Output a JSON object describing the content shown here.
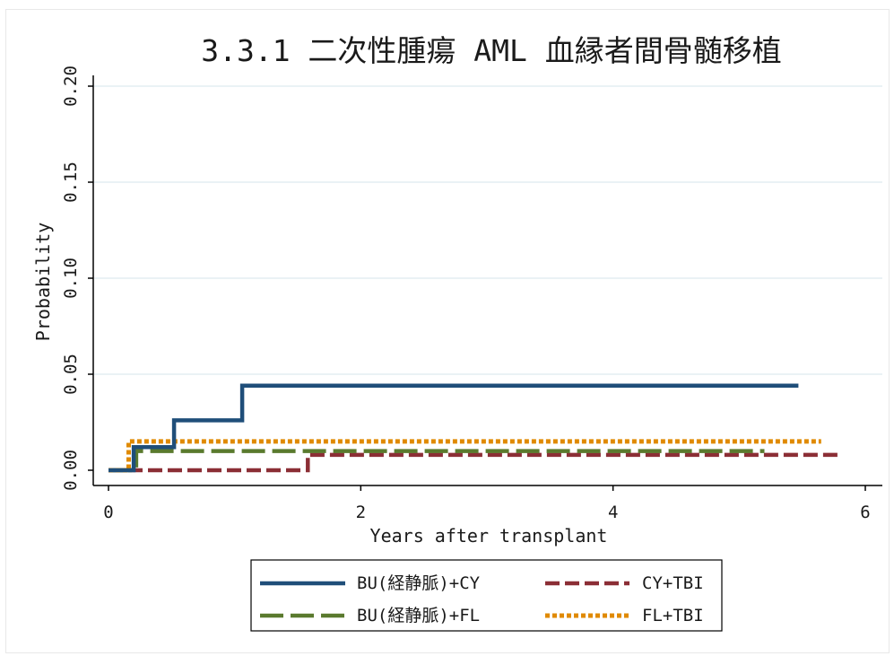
{
  "chart_data": {
    "type": "line",
    "title": "3.3.1 二次性腫瘍 AML 血縁者間骨髄移植",
    "xlabel": "Years after transplant",
    "ylabel": "Probability",
    "x_ticks": [
      "0",
      "2",
      "4",
      "6"
    ],
    "y_ticks": [
      "0.00",
      "0.05",
      "0.10",
      "0.15",
      "0.20"
    ],
    "xlim": [
      0,
      6
    ],
    "ylim": [
      0,
      0.2
    ],
    "grid": true,
    "legend_position": "bottom",
    "series": [
      {
        "name": "BU(経静脈)+CY",
        "color": "#1f4e79",
        "dash": "solid",
        "points": [
          [
            0,
            0
          ],
          [
            0.2,
            0
          ],
          [
            0.2,
            0.012
          ],
          [
            0.52,
            0.012
          ],
          [
            0.52,
            0.026
          ],
          [
            1.06,
            0.026
          ],
          [
            1.06,
            0.044
          ],
          [
            5.47,
            0.044
          ]
        ]
      },
      {
        "name": "CY+TBI",
        "color": "#8b2e35",
        "dash": "dash",
        "points": [
          [
            0,
            0
          ],
          [
            1.58,
            0
          ],
          [
            1.58,
            0.008
          ],
          [
            5.8,
            0.008
          ]
        ]
      },
      {
        "name": "BU(経静脈)+FL",
        "color": "#5a7a2e",
        "dash": "longdash",
        "points": [
          [
            0,
            0
          ],
          [
            0.22,
            0
          ],
          [
            0.22,
            0.01
          ],
          [
            5.2,
            0.01
          ]
        ]
      },
      {
        "name": "FL+TBI",
        "color": "#e08a00",
        "dash": "shortdash",
        "points": [
          [
            0,
            0
          ],
          [
            0.16,
            0
          ],
          [
            0.16,
            0.015
          ],
          [
            5.65,
            0.015
          ]
        ]
      }
    ],
    "legend_order": [
      0,
      1,
      2,
      3
    ]
  },
  "colors": {
    "grid": "#e4eef2",
    "axis": "#000000",
    "frame_border": "#e8e8e8"
  }
}
